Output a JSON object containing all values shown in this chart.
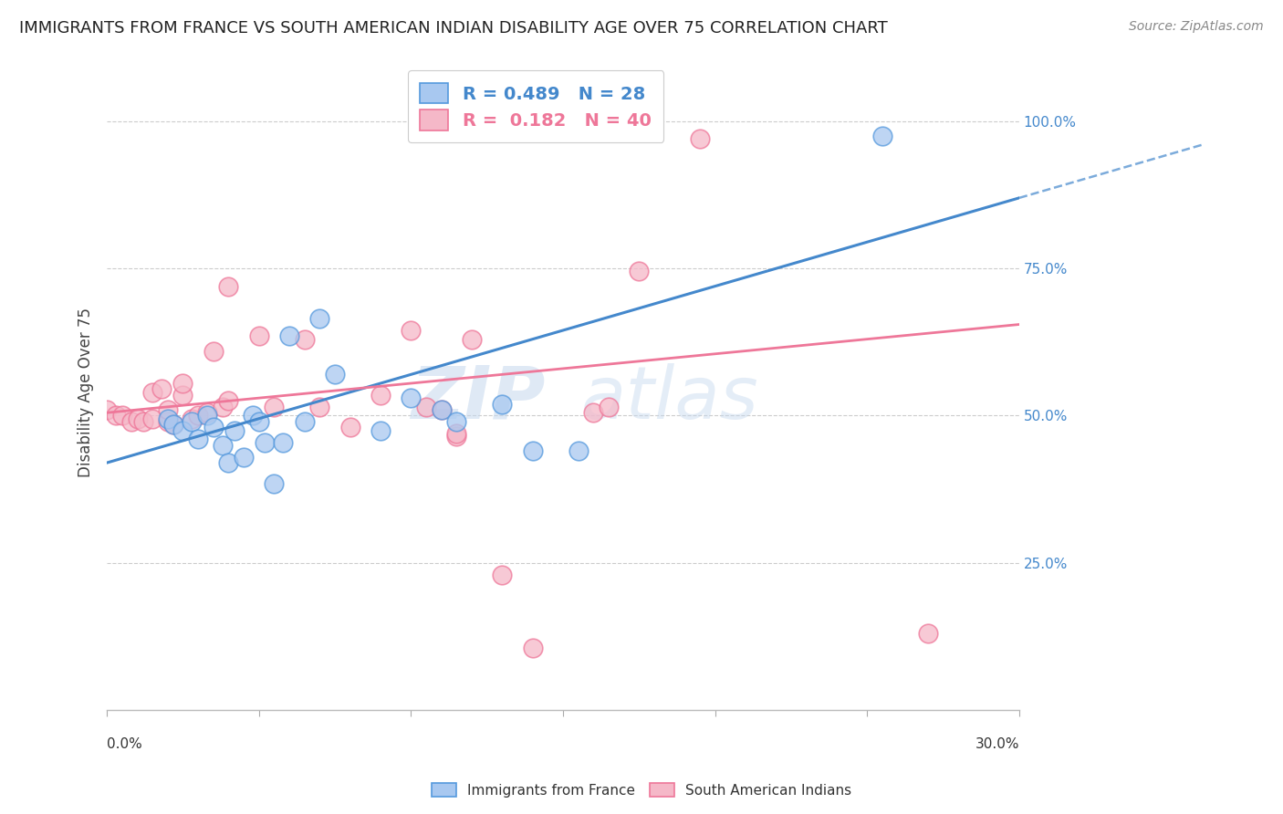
{
  "title": "IMMIGRANTS FROM FRANCE VS SOUTH AMERICAN INDIAN DISABILITY AGE OVER 75 CORRELATION CHART",
  "source": "Source: ZipAtlas.com",
  "ylabel": "Disability Age Over 75",
  "ytick_labels": [
    "100.0%",
    "75.0%",
    "50.0%",
    "25.0%"
  ],
  "ytick_values": [
    1.0,
    0.75,
    0.5,
    0.25
  ],
  "xlim": [
    0.0,
    0.3
  ],
  "ylim": [
    0.0,
    1.08
  ],
  "watermark_zip": "ZIP",
  "watermark_atlas": "atlas",
  "blue_label": "Immigrants from France",
  "pink_label": "South American Indians",
  "blue_R": 0.489,
  "blue_N": 28,
  "pink_R": 0.182,
  "pink_N": 40,
  "blue_color": "#A8C8F0",
  "pink_color": "#F5B8C8",
  "blue_edge_color": "#5599DD",
  "pink_edge_color": "#EE7799",
  "blue_line_color": "#4488CC",
  "pink_line_color": "#EE7799",
  "grid_color": "#CCCCCC",
  "background_color": "#FFFFFF",
  "title_fontsize": 13,
  "blue_line_y0": 0.42,
  "blue_line_y1": 0.87,
  "blue_line_x0": 0.0,
  "blue_line_x1": 0.3,
  "pink_line_y0": 0.505,
  "pink_line_y1": 0.655,
  "pink_line_x0": 0.0,
  "pink_line_x1": 0.3,
  "blue_scatter_x": [
    0.02,
    0.022,
    0.025,
    0.028,
    0.03,
    0.033,
    0.035,
    0.038,
    0.04,
    0.042,
    0.045,
    0.048,
    0.05,
    0.052,
    0.055,
    0.058,
    0.06,
    0.065,
    0.07,
    0.075,
    0.09,
    0.1,
    0.11,
    0.115,
    0.13,
    0.14,
    0.155,
    0.255
  ],
  "blue_scatter_y": [
    0.495,
    0.485,
    0.475,
    0.49,
    0.46,
    0.5,
    0.48,
    0.45,
    0.42,
    0.475,
    0.43,
    0.5,
    0.49,
    0.455,
    0.385,
    0.455,
    0.635,
    0.49,
    0.665,
    0.57,
    0.475,
    0.53,
    0.51,
    0.49,
    0.52,
    0.44,
    0.44,
    0.975
  ],
  "pink_scatter_x": [
    0.0,
    0.003,
    0.005,
    0.008,
    0.01,
    0.012,
    0.015,
    0.015,
    0.018,
    0.02,
    0.02,
    0.022,
    0.025,
    0.025,
    0.028,
    0.03,
    0.033,
    0.035,
    0.038,
    0.04,
    0.04,
    0.05,
    0.055,
    0.065,
    0.07,
    0.08,
    0.09,
    0.1,
    0.105,
    0.11,
    0.115,
    0.115,
    0.12,
    0.13,
    0.14,
    0.16,
    0.165,
    0.175,
    0.195,
    0.27
  ],
  "pink_scatter_y": [
    0.51,
    0.5,
    0.5,
    0.49,
    0.495,
    0.49,
    0.495,
    0.54,
    0.545,
    0.49,
    0.51,
    0.485,
    0.535,
    0.555,
    0.495,
    0.5,
    0.505,
    0.61,
    0.515,
    0.72,
    0.525,
    0.635,
    0.515,
    0.63,
    0.515,
    0.48,
    0.535,
    0.645,
    0.515,
    0.51,
    0.465,
    0.47,
    0.63,
    0.23,
    0.105,
    0.505,
    0.515,
    0.745,
    0.97,
    0.13
  ]
}
